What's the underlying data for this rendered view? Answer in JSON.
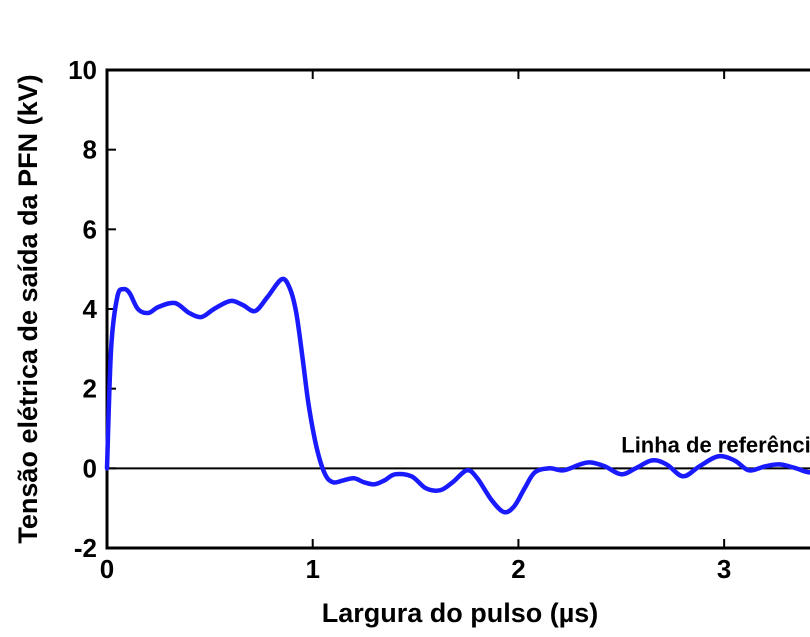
{
  "chart_data": {
    "type": "line",
    "title": "",
    "xlabel": "Largura do pulso (µs)",
    "ylabel": "Tensão elétrica de saída da PFN (kV)",
    "xlim": [
      0,
      3.5
    ],
    "ylim": [
      -2,
      10
    ],
    "x_ticks": [
      0,
      1,
      2,
      3
    ],
    "y_ticks": [
      -2,
      0,
      2,
      4,
      6,
      8,
      10
    ],
    "grid": false,
    "line_color": "#1a1aff",
    "reference_line": {
      "y": 0,
      "label": "Linha de referência",
      "color": "#000000"
    },
    "series": [
      {
        "x": [
          0,
          0.02,
          0.05,
          0.08,
          0.11,
          0.15,
          0.2,
          0.25,
          0.33,
          0.4,
          0.46,
          0.52,
          0.6,
          0.66,
          0.72,
          0.78,
          0.85,
          0.89,
          0.92,
          0.95,
          0.98,
          1.02,
          1.06,
          1.1,
          1.15,
          1.2,
          1.25,
          1.3,
          1.35,
          1.4,
          1.48,
          1.55,
          1.62,
          1.68,
          1.75,
          1.8,
          1.87,
          1.93,
          1.98,
          2.03,
          2.08,
          2.15,
          2.22,
          2.3,
          2.35,
          2.42,
          2.5,
          2.57,
          2.65,
          2.72,
          2.8,
          2.88,
          2.97,
          3.05,
          3.12,
          3.2,
          3.27,
          3.35,
          3.42,
          3.5
        ],
        "y": [
          0,
          3.0,
          4.3,
          4.5,
          4.4,
          4.0,
          3.9,
          4.05,
          4.15,
          3.9,
          3.8,
          4.0,
          4.2,
          4.1,
          3.95,
          4.3,
          4.75,
          4.5,
          3.9,
          2.8,
          1.6,
          0.5,
          -0.15,
          -0.35,
          -0.3,
          -0.25,
          -0.35,
          -0.4,
          -0.3,
          -0.15,
          -0.2,
          -0.5,
          -0.55,
          -0.35,
          -0.05,
          -0.25,
          -0.8,
          -1.1,
          -0.95,
          -0.5,
          -0.1,
          0,
          -0.05,
          0.1,
          0.15,
          0.05,
          -0.15,
          0,
          0.2,
          0.1,
          -0.2,
          0.05,
          0.3,
          0.2,
          -0.05,
          0.05,
          0.1,
          0,
          -0.1,
          0.05
        ]
      }
    ]
  }
}
